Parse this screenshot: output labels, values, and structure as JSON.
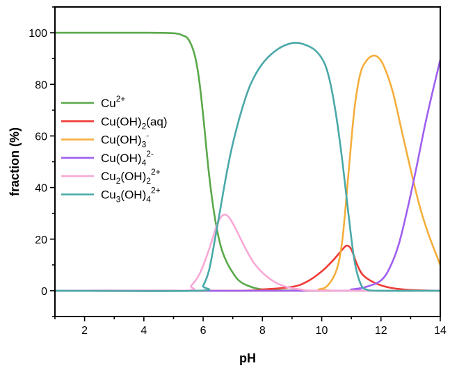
{
  "chart_data": {
    "type": "line",
    "xlabel": "pH",
    "ylabel": "fraction (%)",
    "xlim": [
      1,
      14
    ],
    "ylim": [
      -10,
      110
    ],
    "xticks": [
      "2",
      "4",
      "6",
      "8",
      "10",
      "12",
      "14"
    ],
    "yticks": [
      "0",
      "20",
      "40",
      "60",
      "80",
      "100"
    ],
    "grid": false,
    "legend_placement": "center-left",
    "series": [
      {
        "base": "Cu",
        "sub": "",
        "mid": "",
        "sup": "2+",
        "tail": "",
        "color": "#5aa84a",
        "points": [
          [
            1,
            100
          ],
          [
            4,
            100
          ],
          [
            5,
            99.8
          ],
          [
            5.3,
            99
          ],
          [
            5.5,
            97.5
          ],
          [
            5.7,
            92
          ],
          [
            5.85,
            83
          ],
          [
            6,
            68
          ],
          [
            6.2,
            45
          ],
          [
            6.4,
            28
          ],
          [
            6.6,
            17
          ],
          [
            6.8,
            11
          ],
          [
            7,
            7
          ],
          [
            7.2,
            4
          ],
          [
            7.5,
            2
          ],
          [
            8,
            0.5
          ],
          [
            9,
            0.1
          ],
          [
            10,
            0
          ],
          [
            14,
            0
          ]
        ]
      },
      {
        "base": "Cu(OH)",
        "sub": "2",
        "mid": "",
        "sup": "",
        "tail": "(aq)",
        "color": "#ef3b36",
        "points": [
          [
            1,
            0
          ],
          [
            7,
            0
          ],
          [
            8,
            0.5
          ],
          [
            9,
            1.5
          ],
          [
            9.5,
            3.5
          ],
          [
            10,
            7.5
          ],
          [
            10.4,
            12
          ],
          [
            10.7,
            16
          ],
          [
            10.85,
            17.5
          ],
          [
            11,
            16
          ],
          [
            11.2,
            10
          ],
          [
            11.4,
            6
          ],
          [
            11.8,
            3
          ],
          [
            12.3,
            1.2
          ],
          [
            13,
            0.3
          ],
          [
            14,
            0
          ]
        ]
      },
      {
        "base": "Cu(OH)",
        "sub": "3",
        "mid": "",
        "sup": "-",
        "tail": "",
        "color": "#f5ae3c",
        "points": [
          [
            1,
            0
          ],
          [
            9.5,
            0
          ],
          [
            9.9,
            0.5
          ],
          [
            10.2,
            2
          ],
          [
            10.5,
            8
          ],
          [
            10.7,
            20
          ],
          [
            10.9,
            45
          ],
          [
            11.1,
            70
          ],
          [
            11.3,
            84
          ],
          [
            11.5,
            89
          ],
          [
            11.7,
            91
          ],
          [
            11.9,
            90.5
          ],
          [
            12.1,
            87
          ],
          [
            12.4,
            77
          ],
          [
            12.7,
            62
          ],
          [
            13,
            47
          ],
          [
            13.3,
            33
          ],
          [
            13.6,
            22
          ],
          [
            14,
            10
          ]
        ]
      },
      {
        "base": "Cu(OH)",
        "sub": "4",
        "mid": "",
        "sup": "2-",
        "tail": "",
        "color": "#a05ff0",
        "points": [
          [
            1,
            0
          ],
          [
            10.5,
            0
          ],
          [
            11,
            0.5
          ],
          [
            11.5,
            1.5
          ],
          [
            12,
            4
          ],
          [
            12.3,
            9
          ],
          [
            12.6,
            18
          ],
          [
            12.9,
            32
          ],
          [
            13.2,
            48
          ],
          [
            13.5,
            65
          ],
          [
            13.8,
            80
          ],
          [
            14,
            89.5
          ]
        ]
      },
      {
        "base": "Cu",
        "sub": "2",
        "mid": "(OH)",
        "sup": "2+",
        "tail": "",
        "subsup": "2",
        "color": "#f7a9d6",
        "points": [
          [
            1,
            0
          ],
          [
            5.3,
            0
          ],
          [
            5.6,
            2
          ],
          [
            5.9,
            7
          ],
          [
            6.2,
            16
          ],
          [
            6.45,
            25
          ],
          [
            6.6,
            28.5
          ],
          [
            6.75,
            29.5
          ],
          [
            6.9,
            28
          ],
          [
            7.1,
            24
          ],
          [
            7.4,
            17
          ],
          [
            7.7,
            11
          ],
          [
            8,
            7
          ],
          [
            8.4,
            3.5
          ],
          [
            8.8,
            1.5
          ],
          [
            9.3,
            0.5
          ],
          [
            10,
            0
          ],
          [
            14,
            0
          ]
        ]
      },
      {
        "base": "Cu",
        "sub": "3",
        "mid": "(OH)",
        "sup": "2+",
        "tail": "",
        "subsup": "4",
        "color": "#4aa8a8",
        "points": [
          [
            1,
            0
          ],
          [
            5.8,
            0
          ],
          [
            6,
            2
          ],
          [
            6.2,
            8
          ],
          [
            6.4,
            20
          ],
          [
            6.6,
            33
          ],
          [
            6.8,
            46
          ],
          [
            7,
            57
          ],
          [
            7.3,
            70
          ],
          [
            7.6,
            80
          ],
          [
            8,
            88
          ],
          [
            8.5,
            93.5
          ],
          [
            9,
            96
          ],
          [
            9.4,
            95.5
          ],
          [
            9.8,
            93
          ],
          [
            10.1,
            88
          ],
          [
            10.3,
            80
          ],
          [
            10.5,
            67
          ],
          [
            10.7,
            50
          ],
          [
            10.9,
            30
          ],
          [
            11.1,
            12
          ],
          [
            11.3,
            3
          ],
          [
            11.5,
            0.5
          ],
          [
            12,
            0
          ],
          [
            14,
            0
          ]
        ]
      }
    ]
  }
}
